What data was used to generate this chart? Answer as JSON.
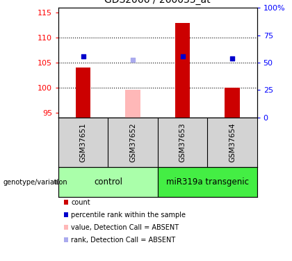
{
  "title": "GDS2066 / 260033_at",
  "samples": [
    "GSM37651",
    "GSM37652",
    "GSM37653",
    "GSM37654"
  ],
  "bar_values": [
    104,
    null,
    113,
    100
  ],
  "bar_absent_values": [
    null,
    99.5,
    null,
    null
  ],
  "bar_color": "#cc0000",
  "bar_absent_color": "#ffb8b8",
  "dot_values": [
    106.2,
    null,
    106.2,
    105.8
  ],
  "dot_absent_values": [
    null,
    105.6,
    null,
    null
  ],
  "dot_color_present": "#0000cc",
  "dot_color_absent": "#aaaaee",
  "ylim_left": [
    94,
    116
  ],
  "yticks_left": [
    95,
    100,
    105,
    110,
    115
  ],
  "ylim_right": [
    0,
    100
  ],
  "yticks_right": [
    0,
    25,
    50,
    75,
    100
  ],
  "ytick_labels_right": [
    "0",
    "25",
    "50",
    "75",
    "100%"
  ],
  "hlines": [
    100,
    105,
    110
  ],
  "group_labels": [
    "control",
    "miR319a transgenic"
  ],
  "group_colors": [
    "#aaffaa",
    "#44ee44"
  ],
  "bar_width": 0.3,
  "x_positions": [
    0,
    1,
    2,
    3
  ],
  "xlim": [
    -0.5,
    3.5
  ],
  "legend_colors": [
    "#cc0000",
    "#0000cc",
    "#ffb8b8",
    "#aaaaee"
  ],
  "legend_labels": [
    "count",
    "percentile rank within the sample",
    "value, Detection Call = ABSENT",
    "rank, Detection Call = ABSENT"
  ]
}
